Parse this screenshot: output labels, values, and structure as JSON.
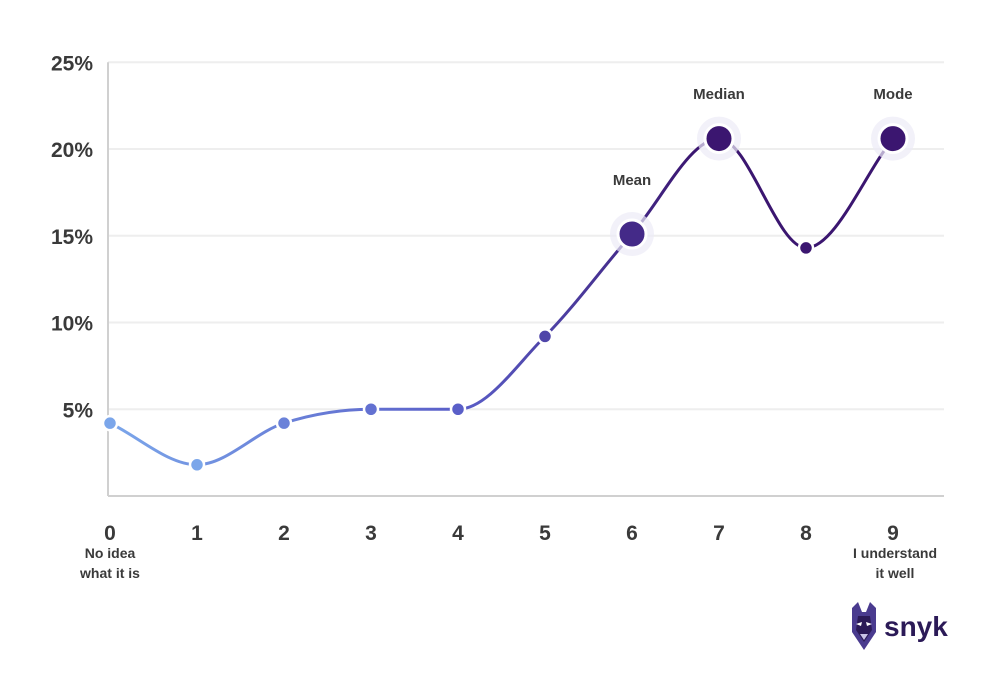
{
  "chart_data": {
    "type": "line",
    "x": [
      0,
      1,
      2,
      3,
      4,
      5,
      6,
      7,
      8,
      9
    ],
    "series": [
      {
        "values": [
          4.2,
          1.8,
          4.2,
          5.0,
          5.0,
          9.2,
          15.1,
          20.6,
          14.3,
          20.6
        ]
      }
    ],
    "ylim": [
      0,
      25
    ],
    "yticks": [
      5,
      10,
      15,
      20,
      25
    ],
    "ytick_labels": [
      "5%",
      "10%",
      "15%",
      "20%",
      "25%"
    ],
    "xtick_labels": [
      "0",
      "1",
      "2",
      "3",
      "4",
      "5",
      "6",
      "7",
      "8",
      "9"
    ],
    "x_end_labels": {
      "left": [
        "No idea",
        "what it is"
      ],
      "right": [
        "I understand",
        "it well"
      ]
    },
    "annotations": [
      {
        "label": "Mean",
        "x": 6
      },
      {
        "label": "Median",
        "x": 7
      },
      {
        "label": "Mode",
        "x": 9
      }
    ],
    "grid": true,
    "colors": {
      "gradient_start": "#7ba6ea",
      "gradient_mid": "#5a5ec8",
      "gradient_end": "#3b1670",
      "grid": "#eeeeee",
      "axis": "#d0d0d0",
      "text": "#3a3a3a"
    }
  },
  "brand": {
    "name": "snyk",
    "logo_icon": "doberman-head-icon"
  }
}
